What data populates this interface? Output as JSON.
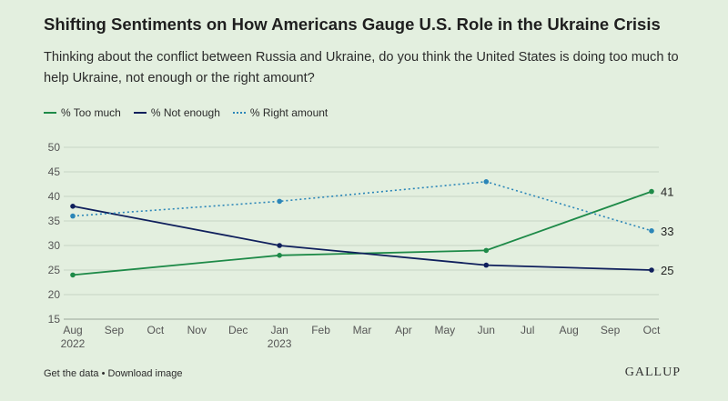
{
  "header": {
    "title": "Shifting Sentiments on How Americans Gauge U.S. Role in the Ukraine Crisis",
    "subtitle": "Thinking about the conflict between Russia and Ukraine, do you think the United States is doing too much to help Ukraine, not enough or the right amount?"
  },
  "footer": {
    "get_data": "Get the data",
    "separator": "•",
    "download": "Download image",
    "brand": "GALLUP"
  },
  "chart_data": {
    "type": "line",
    "title": "",
    "xlabel": "",
    "ylabel": "",
    "ylim": [
      15,
      50
    ],
    "yticks": [
      15,
      20,
      25,
      30,
      35,
      40,
      45,
      50
    ],
    "grid": true,
    "legend_position": "top-left",
    "x_ticks": [
      {
        "label": "Aug",
        "year": "2022",
        "month": 0
      },
      {
        "label": "Sep",
        "year": "",
        "month": 1
      },
      {
        "label": "Oct",
        "year": "",
        "month": 2
      },
      {
        "label": "Nov",
        "year": "",
        "month": 3
      },
      {
        "label": "Dec",
        "year": "",
        "month": 4
      },
      {
        "label": "Jan",
        "year": "2023",
        "month": 5
      },
      {
        "label": "Feb",
        "year": "",
        "month": 6
      },
      {
        "label": "Mar",
        "year": "",
        "month": 7
      },
      {
        "label": "Apr",
        "year": "",
        "month": 8
      },
      {
        "label": "May",
        "year": "",
        "month": 9
      },
      {
        "label": "Jun",
        "year": "",
        "month": 10
      },
      {
        "label": "Jul",
        "year": "",
        "month": 11
      },
      {
        "label": "Aug",
        "year": "",
        "month": 12
      },
      {
        "label": "Sep",
        "year": "",
        "month": 13
      },
      {
        "label": "Oct",
        "year": "",
        "month": 14
      }
    ],
    "x_dates": [
      "Aug 2022",
      "Jan 2023",
      "Jun 2023",
      "Oct 2023"
    ],
    "x_months": [
      0,
      5,
      10,
      14
    ],
    "series": [
      {
        "name": "% Too much",
        "values": [
          24,
          28,
          29,
          41
        ],
        "color": "#1e8a48",
        "style": "solid",
        "end_label": "41"
      },
      {
        "name": "% Not enough",
        "values": [
          38,
          30,
          26,
          25
        ],
        "color": "#0f1f5c",
        "style": "solid",
        "end_label": "25"
      },
      {
        "name": "% Right amount",
        "values": [
          36,
          39,
          43,
          33
        ],
        "color": "#2b86b8",
        "style": "dotted",
        "end_label": "33"
      }
    ]
  }
}
